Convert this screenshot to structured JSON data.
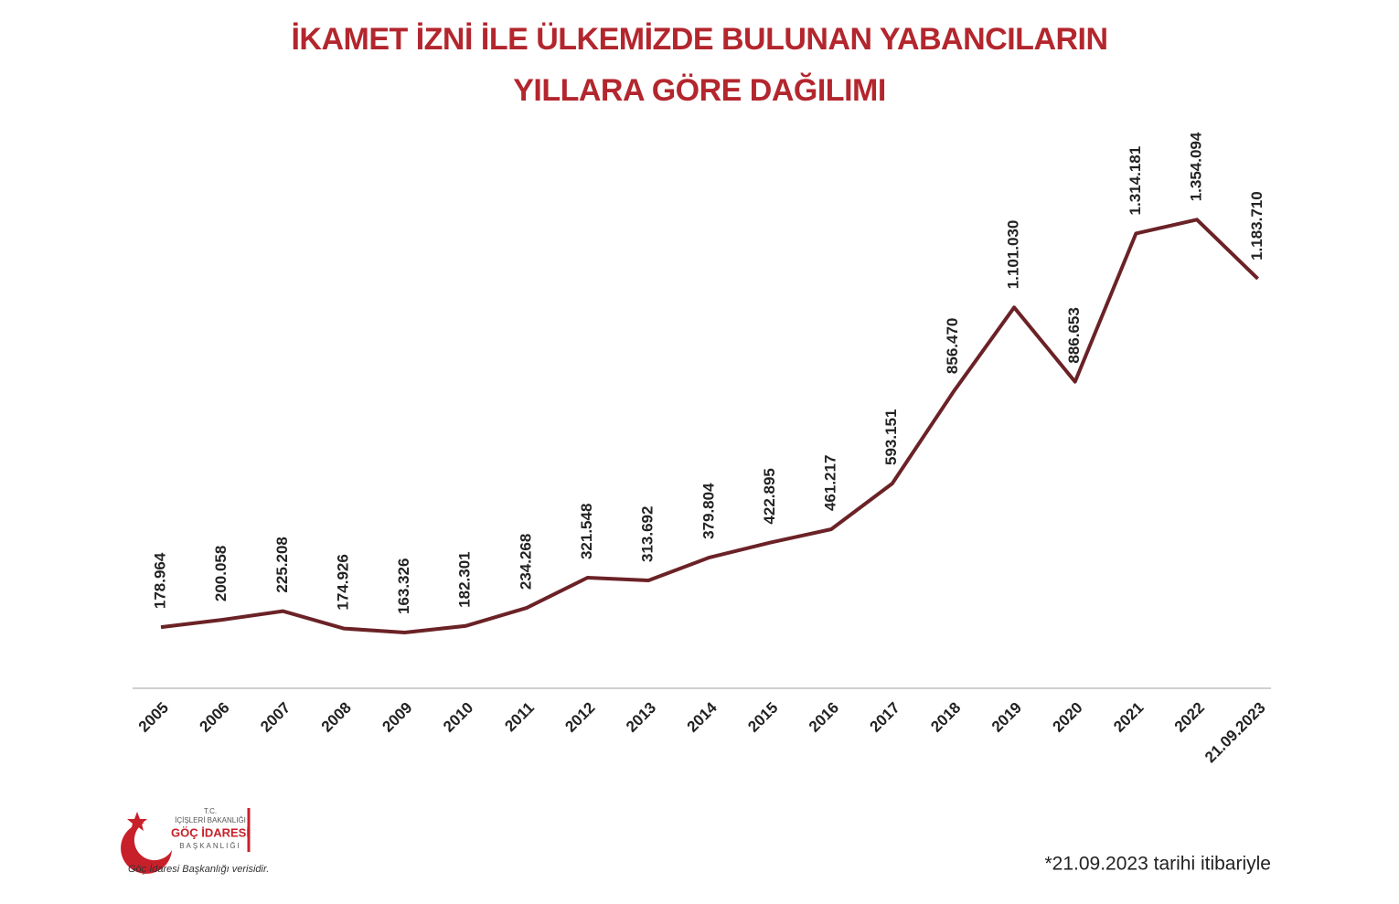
{
  "chart_data": {
    "type": "line",
    "title": [
      "İKAMET İZNİ İLE ÜLKEMİZDE BULUNAN YABANCILARIN",
      "YILLARA GÖRE DAĞILIMI"
    ],
    "categories": [
      "2005",
      "2006",
      "2007",
      "2008",
      "2009",
      "2010",
      "2011",
      "2012",
      "2013",
      "2014",
      "2015",
      "2016",
      "2017",
      "2018",
      "2019",
      "2020",
      "2021",
      "2022",
      "21.09.2023"
    ],
    "series": [
      {
        "color": "#6b2226",
        "values": [
          178964,
          200058,
          225208,
          174926,
          163326,
          182301,
          234268,
          321548,
          313692,
          379804,
          422895,
          461217,
          593151,
          856470,
          1101030,
          886653,
          1314181,
          1354094,
          1183710
        ],
        "value_labels": [
          "178.964",
          "200.058",
          "225.208",
          "174.926",
          "163.326",
          "182.301",
          "234.268",
          "321.548",
          "313.692",
          "379.804",
          "422.895",
          "461.217",
          "593.151",
          "856.470",
          "1.101.030",
          "886.653",
          "1.314.181",
          "1.354.094",
          "1.183.710"
        ]
      }
    ],
    "ylim": [
      0,
      1600000
    ],
    "footnote": "*21.09.2023 tarihi itibariyle",
    "logo": {
      "line1": "T.C.",
      "line2": "İÇİŞLERİ BAKANLIĞI",
      "line3": "GÖÇ İDARESİ",
      "line4": "BAŞKANLIĞI"
    },
    "source": "Göç İdaresi Başkanlığı verisidir."
  }
}
